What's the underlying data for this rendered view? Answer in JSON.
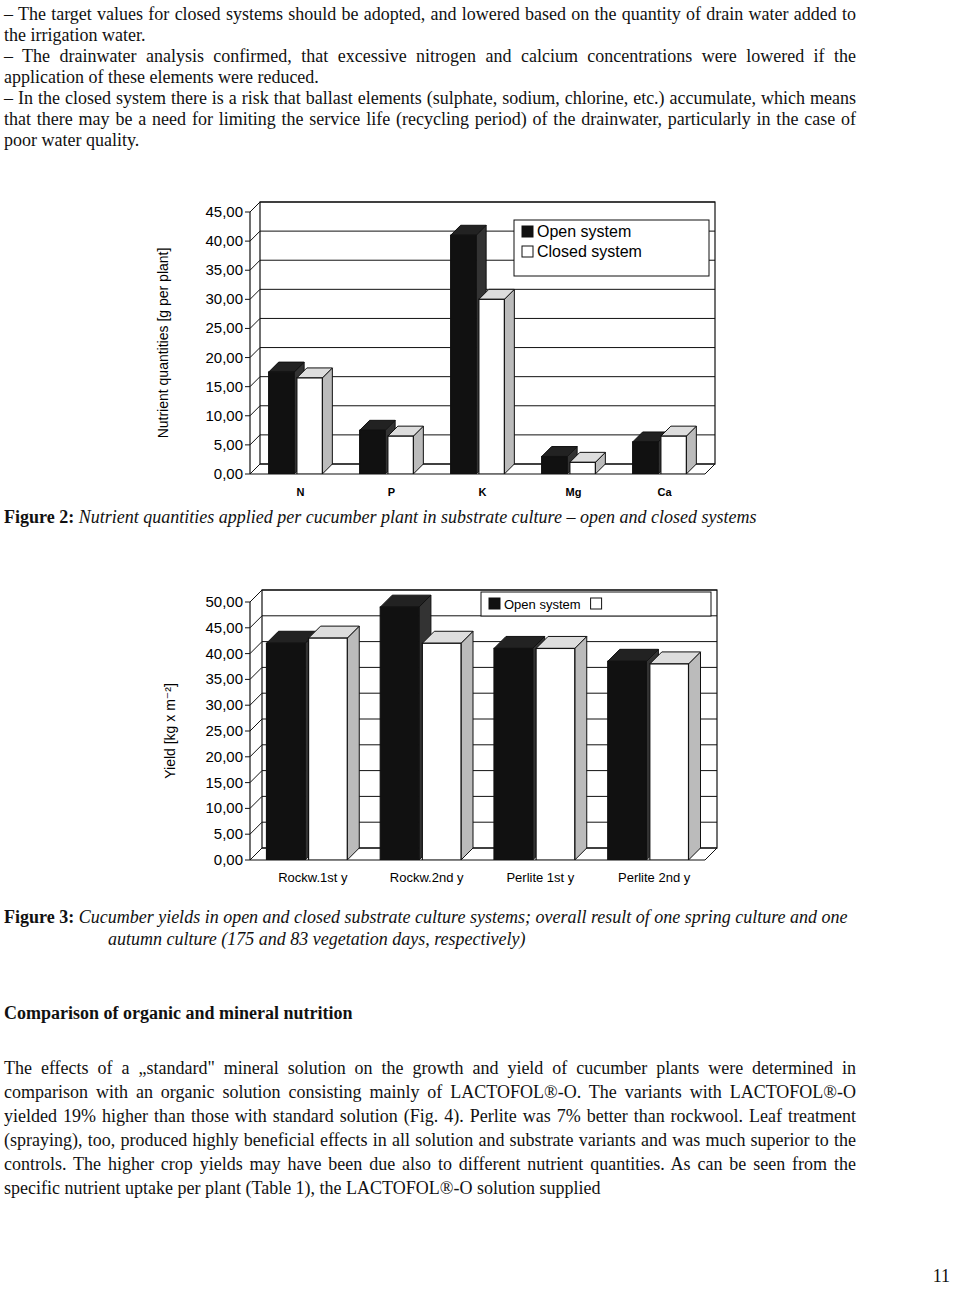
{
  "document": {
    "bullets": [
      "– The target values for closed systems should be adopted, and lowered based on the quantity of drain water added to the irrigation water.",
      "– The drainwater analysis confirmed, that excessive nitrogen and calcium concentrations were lowered if the application of these elements were reduced.",
      "– In the closed system there is a risk that ballast elements (sulphate, sodium, chlorine, etc.) accumulate, which means that there may be a need for limiting the service life (recycling period) of the drainwater, particularly in the case of poor water quality."
    ],
    "captions": [
      {
        "label": "Figure 2:",
        "text": "Nutrient quantities applied per cucumber plant in substrate culture – open and closed systems"
      },
      {
        "label": "Figure 3:",
        "text": "Cucumber yields in open and closed substrate culture systems; overall result of one spring culture and one autumn culture (175 and 83 vegetation days, respectively)"
      }
    ],
    "heading": "Comparison of organic and mineral nutrition",
    "paragraph": "The effects of a „standard\" mineral solution on the growth and yield of cucumber plants were determined in comparison with an organic solution consisting mainly of LACTOFOL®-O. The variants with LACTOFOL®-O yielded 19% higher than those with standard solution (Fig. 4). Perlite was 7% better than rockwool. Leaf treatment (spraying), too, produced highly beneficial effects in all solution and substrate variants and was much superior to the controls. The higher crop yields may have been due also to different nutrient quantities. As can be seen from the specific nutrient uptake per plant (Table 1), the LACTOFOL®-O solution supplied",
    "page_number": "11"
  },
  "chart_data": [
    {
      "type": "bar",
      "y_label": "Nutrient quantities [g per plant]",
      "categories": [
        "N",
        "P",
        "K",
        "Mg",
        "Ca"
      ],
      "series": [
        {
          "name": "Open system",
          "color": "#111111",
          "values": [
            17.5,
            7.5,
            41,
            3,
            5.5
          ]
        },
        {
          "name": "Closed system",
          "color": "#ffffff",
          "values": [
            16.5,
            6.5,
            30,
            2,
            6.5
          ]
        }
      ],
      "ylim": [
        0,
        45
      ],
      "yticks": [
        {
          "value": 0,
          "label": "0,00"
        },
        {
          "value": 5,
          "label": "5,00"
        },
        {
          "value": 10,
          "label": "10,00"
        },
        {
          "value": 15,
          "label": "15,00"
        },
        {
          "value": 20,
          "label": "20,00"
        },
        {
          "value": 25,
          "label": "25,00"
        },
        {
          "value": 30,
          "label": "30,00"
        },
        {
          "value": 35,
          "label": "35,00"
        },
        {
          "value": 40,
          "label": "40,00"
        },
        {
          "value": 45,
          "label": "45,00"
        }
      ],
      "grid": true,
      "legend": "upper right"
    },
    {
      "type": "bar",
      "y_label": "Yield [kg x m⁻²]",
      "categories": [
        "Rockw.1st y",
        "Rockw.2nd y",
        "Perlite 1st y",
        "Perlite 2nd y"
      ],
      "series": [
        {
          "name": "Open system",
          "color": "#111111",
          "values": [
            42,
            49,
            41,
            38.5
          ]
        },
        {
          "color": "#ffffff",
          "values": [
            43,
            42,
            41,
            38
          ]
        }
      ],
      "ylim": [
        0,
        50
      ],
      "yticks": [
        {
          "value": 0,
          "label": "0,00"
        },
        {
          "value": 5,
          "label": "5,00"
        },
        {
          "value": 10,
          "label": "10,00"
        },
        {
          "value": 15,
          "label": "15,00"
        },
        {
          "value": 20,
          "label": "20,00"
        },
        {
          "value": 25,
          "label": "25,00"
        },
        {
          "value": 30,
          "label": "30,00"
        },
        {
          "value": 35,
          "label": "35,00"
        },
        {
          "value": 40,
          "label": "40,00"
        },
        {
          "value": 45,
          "label": "45,00"
        },
        {
          "value": 50,
          "label": "50,00"
        }
      ],
      "grid": true,
      "legend": "upper right"
    }
  ]
}
